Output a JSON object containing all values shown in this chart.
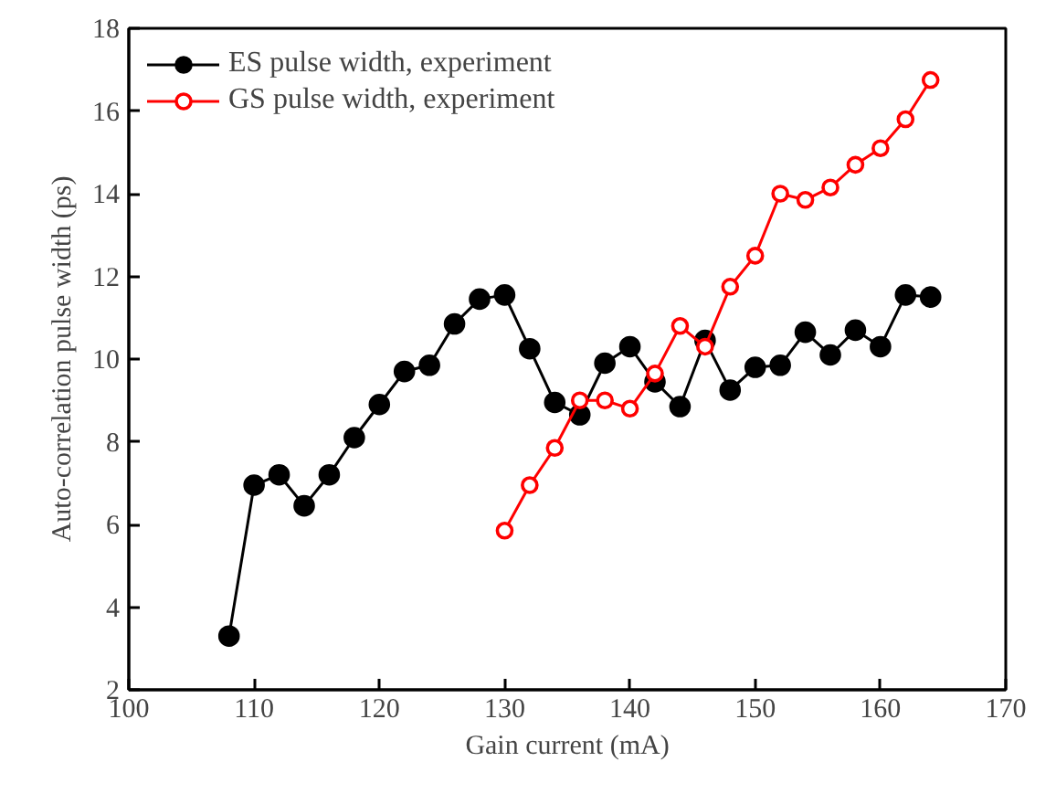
{
  "chart_data": {
    "type": "line",
    "xlabel": "Gain current (mA)",
    "ylabel": "Auto-correlation pulse width (ps)",
    "xlim": [
      100,
      170
    ],
    "xticks": [
      100,
      110,
      120,
      130,
      140,
      150,
      160,
      170
    ],
    "ylim": [
      2,
      18
    ],
    "yticks": [
      2,
      4,
      6,
      8,
      10,
      12,
      14,
      16,
      18
    ],
    "grid": false,
    "legend": "top left",
    "marker": "circle",
    "line_style": "solid",
    "series": [
      {
        "name": "ES pulse width, experiment",
        "color": "#000000",
        "x": [
          108,
          110,
          112,
          114,
          116,
          118,
          120,
          122,
          124,
          126,
          128,
          130,
          132,
          134,
          136,
          138,
          140,
          142,
          144,
          146,
          148,
          150,
          152,
          154,
          156,
          158,
          160,
          162,
          164
        ],
        "values": [
          3.3,
          6.95,
          7.2,
          6.45,
          7.2,
          8.1,
          8.9,
          9.7,
          9.85,
          10.85,
          11.45,
          11.55,
          10.25,
          8.95,
          8.65,
          9.9,
          10.3,
          9.45,
          8.85,
          10.45,
          9.25,
          9.8,
          9.85,
          10.65,
          10.1,
          10.7,
          10.3,
          11.55,
          11.5
        ]
      },
      {
        "name": "GS pulse width, experiment",
        "color": "#ff0000",
        "marker": "open_circle",
        "x": [
          130,
          132,
          134,
          136,
          138,
          140,
          142,
          144,
          146,
          148,
          150,
          152,
          154,
          156,
          158,
          160,
          162,
          164
        ],
        "values": [
          5.85,
          6.95,
          7.85,
          9.0,
          9.0,
          8.8,
          9.65,
          10.8,
          10.3,
          11.75,
          12.5,
          14.0,
          13.85,
          14.15,
          14.7,
          15.1,
          15.8,
          16.75
        ]
      }
    ]
  }
}
